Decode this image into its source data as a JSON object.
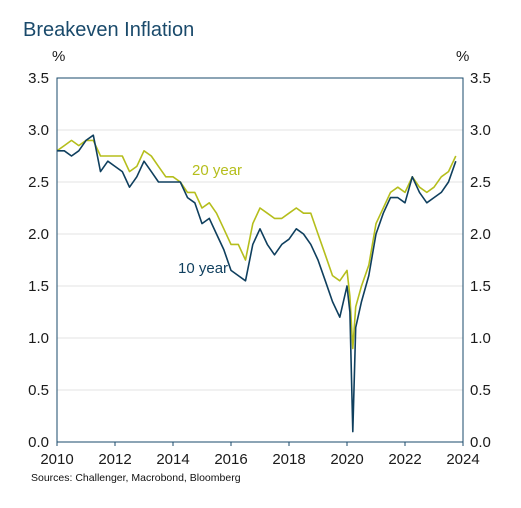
{
  "title": "Breakeven Inflation",
  "source": "Sources: Challenger, Macrobond, Bloomberg",
  "chart_data": {
    "type": "line",
    "title": "Breakeven Inflation",
    "y_unit_left": "%",
    "y_unit_right": "%",
    "ylim": [
      0,
      3.5
    ],
    "xlim": [
      2010,
      2024
    ],
    "y_ticks": [
      "0.0",
      "0.5",
      "1.0",
      "1.5",
      "2.0",
      "2.5",
      "3.0",
      "3.5"
    ],
    "x_ticks": [
      "2010",
      "2012",
      "2014",
      "2016",
      "2018",
      "2020",
      "2022",
      "2024"
    ],
    "grid": true,
    "legend": "inline labels",
    "series": [
      {
        "name": "20 year",
        "color": "#b5be1c",
        "x": [
          2010.0,
          2010.25,
          2010.5,
          2010.75,
          2011.0,
          2011.25,
          2011.5,
          2011.75,
          2012.0,
          2012.25,
          2012.5,
          2012.75,
          2013.0,
          2013.25,
          2013.5,
          2013.75,
          2014.0,
          2014.25,
          2014.5,
          2014.75,
          2015.0,
          2015.25,
          2015.5,
          2015.75,
          2016.0,
          2016.25,
          2016.5,
          2016.75,
          2017.0,
          2017.25,
          2017.5,
          2017.75,
          2018.0,
          2018.25,
          2018.5,
          2018.75,
          2019.0,
          2019.25,
          2019.5,
          2019.75,
          2020.0,
          2020.1,
          2020.2,
          2020.3,
          2020.5,
          2020.75,
          2021.0,
          2021.25,
          2021.5,
          2021.75,
          2022.0,
          2022.25,
          2022.5,
          2022.75,
          2023.0,
          2023.25,
          2023.5,
          2023.75
        ],
        "values": [
          2.8,
          2.85,
          2.9,
          2.85,
          2.9,
          2.9,
          2.75,
          2.75,
          2.75,
          2.75,
          2.6,
          2.65,
          2.8,
          2.75,
          2.65,
          2.55,
          2.55,
          2.5,
          2.4,
          2.4,
          2.25,
          2.3,
          2.2,
          2.05,
          1.9,
          1.9,
          1.75,
          2.1,
          2.25,
          2.2,
          2.15,
          2.15,
          2.2,
          2.25,
          2.2,
          2.2,
          2.0,
          1.8,
          1.6,
          1.55,
          1.65,
          1.4,
          0.9,
          1.3,
          1.5,
          1.7,
          2.1,
          2.25,
          2.4,
          2.45,
          2.4,
          2.55,
          2.45,
          2.4,
          2.45,
          2.55,
          2.6,
          2.75
        ]
      },
      {
        "name": "10 year",
        "color": "#0f3f5e",
        "x": [
          2010.0,
          2010.25,
          2010.5,
          2010.75,
          2011.0,
          2011.25,
          2011.5,
          2011.75,
          2012.0,
          2012.25,
          2012.5,
          2012.75,
          2013.0,
          2013.25,
          2013.5,
          2013.75,
          2014.0,
          2014.25,
          2014.5,
          2014.75,
          2015.0,
          2015.25,
          2015.5,
          2015.75,
          2016.0,
          2016.25,
          2016.5,
          2016.75,
          2017.0,
          2017.25,
          2017.5,
          2017.75,
          2018.0,
          2018.25,
          2018.5,
          2018.75,
          2019.0,
          2019.25,
          2019.5,
          2019.75,
          2020.0,
          2020.1,
          2020.2,
          2020.3,
          2020.5,
          2020.75,
          2021.0,
          2021.25,
          2021.5,
          2021.75,
          2022.0,
          2022.25,
          2022.5,
          2022.75,
          2023.0,
          2023.25,
          2023.5,
          2023.75
        ],
        "values": [
          2.8,
          2.8,
          2.75,
          2.8,
          2.9,
          2.95,
          2.6,
          2.7,
          2.65,
          2.6,
          2.45,
          2.55,
          2.7,
          2.6,
          2.5,
          2.5,
          2.5,
          2.5,
          2.35,
          2.3,
          2.1,
          2.15,
          2.0,
          1.85,
          1.65,
          1.6,
          1.55,
          1.9,
          2.05,
          1.9,
          1.8,
          1.9,
          1.95,
          2.05,
          2.0,
          1.9,
          1.75,
          1.55,
          1.35,
          1.2,
          1.5,
          1.25,
          0.1,
          1.1,
          1.35,
          1.6,
          2.0,
          2.2,
          2.35,
          2.35,
          2.3,
          2.55,
          2.4,
          2.3,
          2.35,
          2.4,
          2.5,
          2.7
        ]
      }
    ]
  }
}
